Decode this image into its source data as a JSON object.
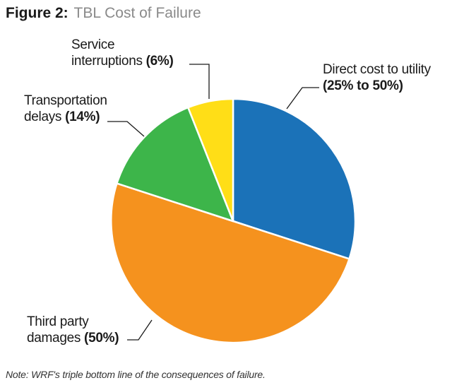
{
  "figure": {
    "number_label": "Figure 2:",
    "title": "TBL Cost of Failure",
    "note": "Note: WRF's triple bottom line of the consequences of failure."
  },
  "chart_data": {
    "type": "pie",
    "title": "TBL Cost of Failure",
    "slices": [
      {
        "id": "direct",
        "label_lines": [
          "Direct cost to utility"
        ],
        "value_text": "(25% to 50%)",
        "value": 30,
        "color": "#1b72b8"
      },
      {
        "id": "third",
        "label_lines": [
          "Third party",
          "damages"
        ],
        "value_text": "(50%)",
        "value": 50,
        "color": "#f5921e"
      },
      {
        "id": "transport",
        "label_lines": [
          "Transportation",
          "delays"
        ],
        "value_text": "(14%)",
        "value": 14,
        "color": "#3db54a"
      },
      {
        "id": "service",
        "label_lines": [
          "Service",
          "interruptions"
        ],
        "value_text": "(6%)",
        "value": 6,
        "color": "#ffde17"
      }
    ],
    "legend": "none",
    "grid": false
  }
}
